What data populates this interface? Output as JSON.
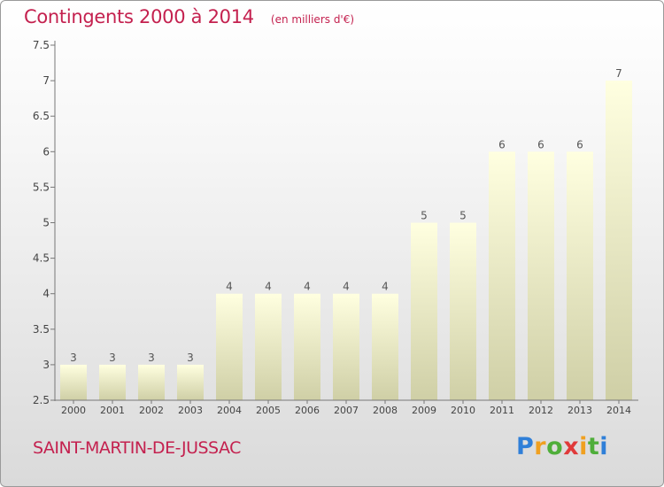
{
  "header": {
    "title": "Contingents 2000 à 2014",
    "subtitle": "(en milliers d'€)"
  },
  "footer": {
    "place": "SAINT-MARTIN-DE-JUSSAC",
    "logo": [
      "P",
      "r",
      "o",
      "x",
      "i",
      "t",
      "i"
    ],
    "logo_colors": [
      "#2f7fd8",
      "#f0a020",
      "#4fae3a",
      "#e03a3a",
      "#f0a020",
      "#4fae3a",
      "#2f7fd8"
    ]
  },
  "colors": {
    "accent": "#c4214f",
    "bar_top": "#ffffe0",
    "bar_bottom": "#cfcfa6"
  },
  "chart_data": {
    "type": "bar",
    "title": "Contingents 2000 à 2014",
    "categories": [
      "2000",
      "2001",
      "2002",
      "2003",
      "2004",
      "2005",
      "2006",
      "2007",
      "2008",
      "2009",
      "2010",
      "2011",
      "2012",
      "2013",
      "2014"
    ],
    "values": [
      3,
      3,
      3,
      3,
      4,
      4,
      4,
      4,
      4,
      5,
      5,
      6,
      6,
      6,
      7
    ],
    "value_labels": [
      "3",
      "3",
      "3",
      "3",
      "4",
      "4",
      "4",
      "4",
      "4",
      "5",
      "5",
      "6",
      "6",
      "6",
      "7"
    ],
    "ylim": [
      2.5,
      7.5
    ],
    "yticks": [
      "2.5",
      "3",
      "3.5",
      "4",
      "4.5",
      "5",
      "5.5",
      "6",
      "6.5",
      "7",
      "7.5"
    ],
    "grid": false
  }
}
